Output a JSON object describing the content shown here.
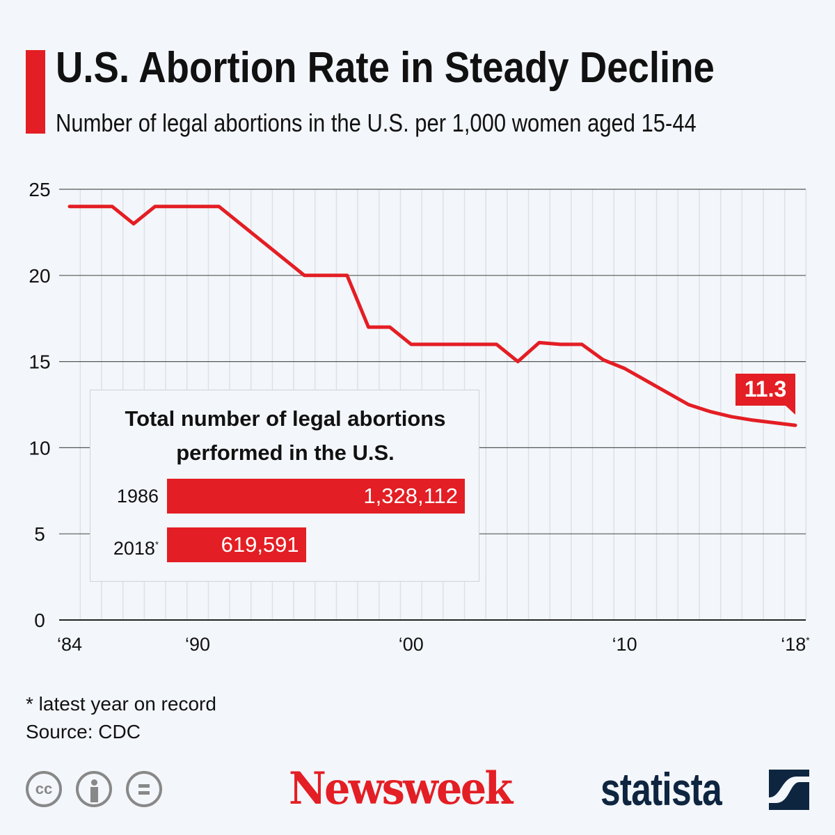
{
  "header": {
    "title": "U.S. Abortion Rate in Steady Decline",
    "subtitle": "Number of legal abortions in the U.S. per 1,000 women aged 15-44"
  },
  "colors": {
    "accent": "#e31e24",
    "background": "#f3f6fa",
    "brand_dark": "#0e2540"
  },
  "chart_data": [
    {
      "type": "line",
      "title": "U.S. Abortion Rate in Steady Decline",
      "subtitle": "Number of legal abortions in the U.S. per 1,000 women aged 15-44",
      "x": [
        1984,
        1985,
        1986,
        1987,
        1988,
        1989,
        1990,
        1991,
        1992,
        1993,
        1994,
        1995,
        1996,
        1997,
        1998,
        1999,
        2000,
        2001,
        2002,
        2003,
        2004,
        2005,
        2006,
        2007,
        2008,
        2009,
        2010,
        2011,
        2012,
        2013,
        2014,
        2015,
        2016,
        2017,
        2018
      ],
      "y": [
        24,
        24,
        24,
        23,
        24,
        24,
        24,
        24,
        23,
        22,
        21,
        20,
        20,
        20,
        17,
        17,
        16,
        16,
        16,
        16,
        16,
        15,
        16.1,
        16,
        16,
        15.1,
        14.6,
        13.9,
        13.2,
        12.5,
        12.1,
        11.8,
        11.6,
        11.45,
        11.3
      ],
      "ylim": [
        0,
        25
      ],
      "yticks": [
        "0",
        "5",
        "10",
        "15",
        "20",
        "25"
      ],
      "xticks": [
        {
          "year": 1984,
          "label": "‘84"
        },
        {
          "year": 1990,
          "label": "‘90"
        },
        {
          "year": 2000,
          "label": "‘00"
        },
        {
          "year": 2010,
          "label": "‘10"
        },
        {
          "year": 2018,
          "label": "‘18",
          "mark": "*"
        }
      ],
      "annotation": {
        "year": 2018,
        "label": "11.3"
      },
      "grid": true
    },
    {
      "type": "bar",
      "title": "Total number of legal abortions performed in the U.S.",
      "orientation": "horizontal",
      "categories": [
        "1986",
        "2018"
      ],
      "category_marks": [
        "",
        "*"
      ],
      "values": [
        1328112,
        619591
      ],
      "value_labels": [
        "1,328,112",
        "619,591"
      ]
    }
  ],
  "footer": {
    "note": "* latest year on record",
    "source": "Source: CDC",
    "cc_icons": [
      "cc-icon",
      "attribution-icon",
      "no-derivatives-icon"
    ],
    "cc_text": "cc",
    "newsweek": "Newsweek",
    "statista": "statista"
  }
}
